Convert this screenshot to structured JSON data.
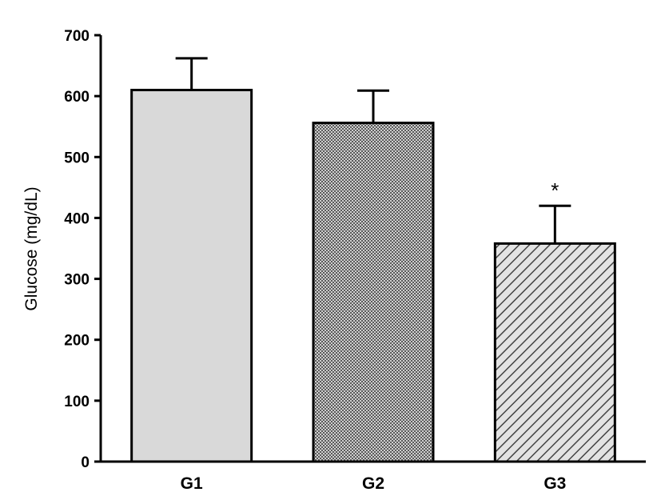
{
  "chart_data": {
    "type": "bar",
    "title": "",
    "xlabel": "",
    "ylabel": "Glucose (mg/dL)",
    "ylim": [
      0,
      700
    ],
    "yticks": [
      0,
      100,
      200,
      300,
      400,
      500,
      600,
      700
    ],
    "categories": [
      "G1",
      "G2",
      "G3"
    ],
    "values": [
      610,
      556,
      358
    ],
    "errors": [
      52,
      53,
      62
    ],
    "annotations": [
      "",
      "",
      "*"
    ],
    "bar_styles": [
      "solid-light-gray",
      "dense-crosshatch",
      "diagonal-hatch"
    ],
    "bar_fill_color": "#d9d9d9",
    "grid": false,
    "legend": "none"
  }
}
